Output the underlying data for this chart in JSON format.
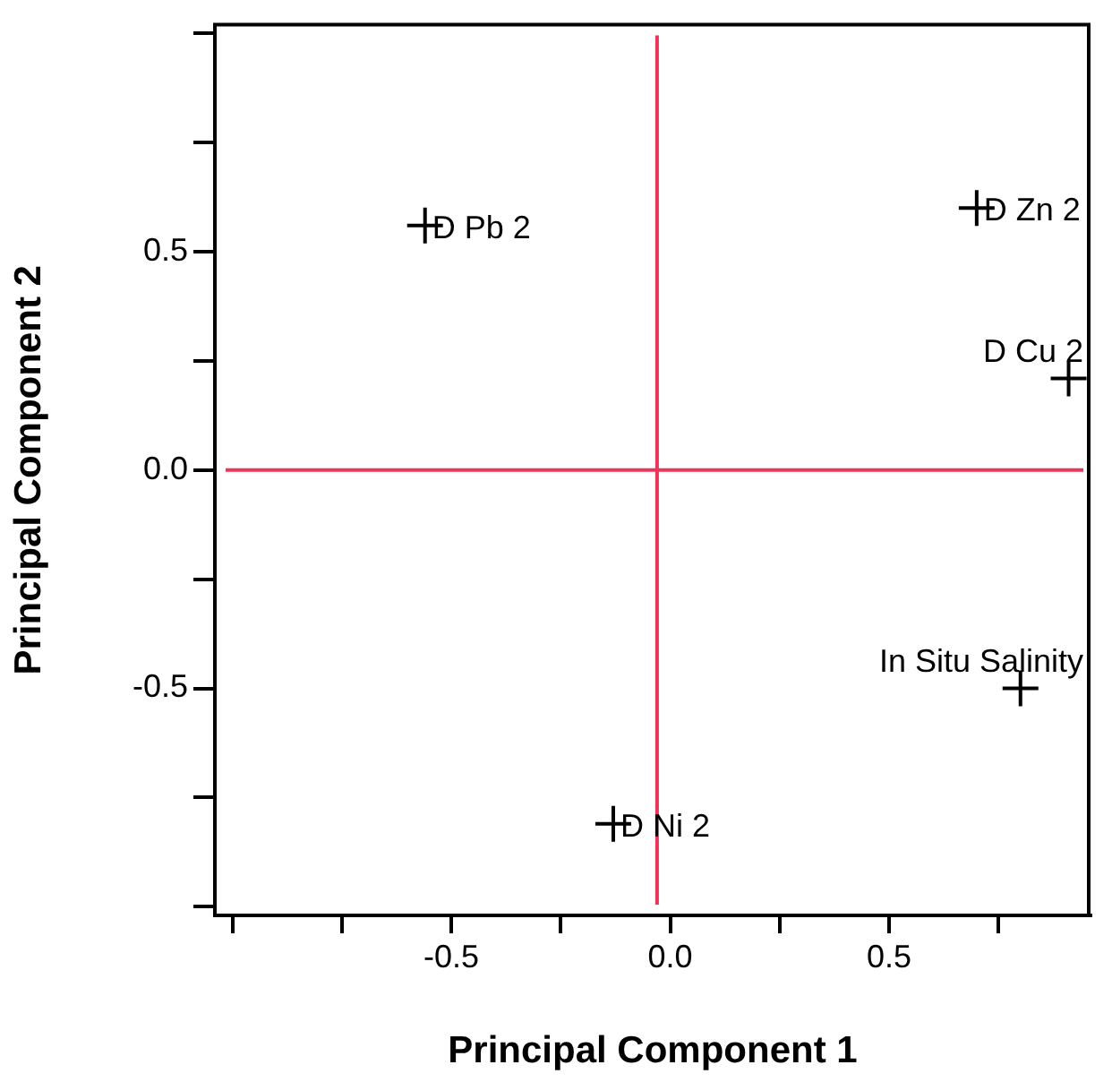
{
  "chart_data": {
    "type": "scatter",
    "xlabel": "Principal Component 1",
    "ylabel": "Principal Component 2",
    "x": [
      -0.56,
      0.7,
      0.91,
      0.8,
      -0.13
    ],
    "series": [
      {
        "color": "#000000",
        "values": [
          0.56,
          0.6,
          0.21,
          -0.5,
          -0.81
        ]
      }
    ],
    "marker": "cross",
    "grid": false,
    "legend": false,
    "xlim": [
      -1.04,
      0.96
    ],
    "ylim": [
      -1.02,
      1.02
    ],
    "xticks": [
      {
        "value": -1,
        "label": null
      },
      {
        "value": -0.75,
        "label": null
      },
      -0.5,
      {
        "value": -0.25,
        "label": null
      },
      {
        "value": 0,
        "label": "0.0"
      },
      {
        "value": 0.25,
        "label": null
      },
      0.5,
      {
        "value": 0.75,
        "label": null
      }
    ],
    "yticks": [
      {
        "value": -1,
        "label": null
      },
      {
        "value": -0.75,
        "label": null
      },
      -0.5,
      {
        "value": -0.25,
        "label": null
      },
      {
        "value": 0,
        "label": "0.0"
      },
      {
        "value": 0.25,
        "label": null
      },
      0.5,
      {
        "value": 0.75,
        "label": null
      },
      {
        "value": 1,
        "label": null
      }
    ],
    "ref_lines": [
      {
        "axis": "x",
        "value": -0.03,
        "color": "#e8375a"
      },
      {
        "axis": "y",
        "value": 0,
        "color": "#e8375a"
      }
    ],
    "annotations": [
      {
        "text": "D Pb 2",
        "x": -0.56,
        "y": 0.56
      },
      {
        "text": "D Zn 2",
        "x": 0.7,
        "y": 0.6
      },
      {
        "text": "D Cu 2",
        "x": 0.91,
        "y": 0.21
      },
      {
        "text": "In Situ Salinity",
        "x": 0.8,
        "y": -0.5
      },
      {
        "text": "D Ni 2",
        "x": -0.13,
        "y": -0.81
      }
    ]
  }
}
